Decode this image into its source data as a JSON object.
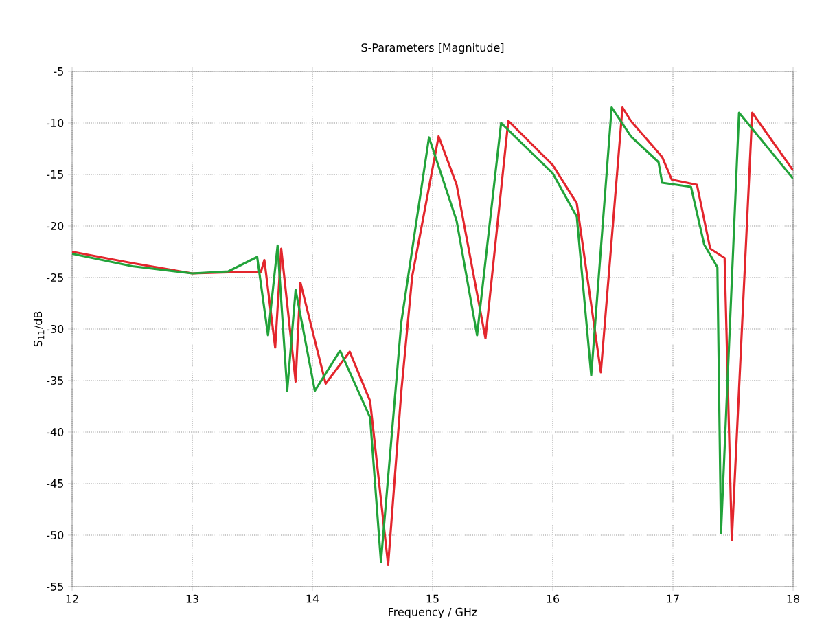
{
  "chart_data": {
    "type": "line",
    "title": "S-Parameters [Magnitude]",
    "xlabel": "Frequency / GHz",
    "ylabel": "S$_{11}$/dB",
    "xlim": [
      12,
      18
    ],
    "xticks": [
      12,
      13,
      14,
      15,
      16,
      17,
      18
    ],
    "ylim": [
      -55,
      -5
    ],
    "yticks": [
      -55,
      -50,
      -45,
      -40,
      -35,
      -30,
      -25,
      -20,
      -15,
      -10,
      -5
    ],
    "grid": true,
    "marker": "none",
    "line_style": "solid",
    "series": [
      {
        "color": "#e3262d",
        "x": [
          12,
          12.5,
          13,
          13.3,
          13.57,
          13.6,
          13.69,
          13.74,
          13.86,
          13.9,
          14.11,
          14.31,
          14.48,
          14.63,
          14.74,
          14.83,
          15.05,
          15.2,
          15.44,
          15.63,
          16,
          16.2,
          16.4,
          16.58,
          16.65,
          16.91,
          16.99,
          17.2,
          17.31,
          17.43,
          17.49,
          17.66,
          18
        ],
        "values": [
          -22.5,
          -23.6,
          -24.6,
          -24.5,
          -24.5,
          -23.3,
          -31.8,
          -22.2,
          -35.1,
          -25.5,
          -35.3,
          -32.2,
          -37,
          -52.9,
          -36,
          -24.9,
          -11.3,
          -16,
          -30.9,
          -9.8,
          -14.1,
          -17.8,
          -34.2,
          -8.5,
          -9.8,
          -13.3,
          -15.5,
          -16,
          -22.2,
          -23.1,
          -50.5,
          -9,
          -14.6
        ]
      },
      {
        "color": "#22a33a",
        "x": [
          12,
          12.5,
          13,
          13.3,
          13.54,
          13.63,
          13.71,
          13.79,
          13.86,
          14.02,
          14.23,
          14.48,
          14.57,
          14.74,
          14.97,
          15.2,
          15.37,
          15.57,
          16,
          16.2,
          16.32,
          16.49,
          16.65,
          16.88,
          16.91,
          17.15,
          17.26,
          17.37,
          17.4,
          17.55,
          18
        ],
        "values": [
          -22.7,
          -23.9,
          -24.6,
          -24.4,
          -23,
          -30.6,
          -21.9,
          -36,
          -26.2,
          -36,
          -32.1,
          -38.6,
          -52.6,
          -29.3,
          -11.4,
          -19.5,
          -30.6,
          -10,
          -14.9,
          -19.1,
          -34.5,
          -8.5,
          -11.3,
          -13.8,
          -15.8,
          -16.2,
          -21.8,
          -24,
          -49.8,
          -9,
          -15.4
        ]
      }
    ]
  }
}
